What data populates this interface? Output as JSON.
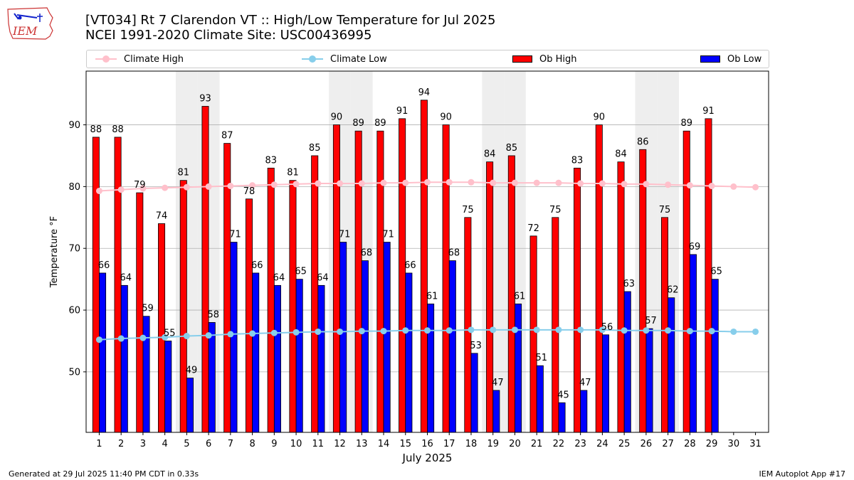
{
  "logo": {
    "text": "IEM"
  },
  "title": {
    "line1": "[VT034] Rt 7 Clarendon  VT :: High/Low Temperature for Jul 2025",
    "line2": "NCEI 1991-2020 Climate Site: USC00436995"
  },
  "legend": {
    "climate_high": "Climate High",
    "climate_low": "Climate Low",
    "ob_high": "Ob High",
    "ob_low": "Ob Low"
  },
  "colors": {
    "ob_high": "#ff0000",
    "ob_low": "#0000ff",
    "climate_high": "#ffc0cb",
    "climate_low": "#87ceeb",
    "weekend_shade": "#eeeeee",
    "grid": "#b0b0b0"
  },
  "footer": {
    "left": "Generated at 29 Jul 2025 11:40 PM CDT in 0.33s",
    "right": "IEM Autoplot App #17"
  },
  "chart_data": {
    "type": "bar",
    "xlabel": "July 2025",
    "ylabel": "Temperature $^\\circ$F",
    "ylim": [
      40.2,
      98.7
    ],
    "yticks": [
      50,
      60,
      70,
      80,
      90
    ],
    "grid": "horizontal",
    "legend_position": "top",
    "days": [
      1,
      2,
      3,
      4,
      5,
      6,
      7,
      8,
      9,
      10,
      11,
      12,
      13,
      14,
      15,
      16,
      17,
      18,
      19,
      20,
      21,
      22,
      23,
      24,
      25,
      26,
      27,
      28,
      29,
      30,
      31
    ],
    "shaded_days": [
      5,
      6,
      12,
      13,
      19,
      20,
      26,
      27
    ],
    "series": [
      {
        "name": "Ob High",
        "kind": "bar",
        "values": [
          88,
          88,
          79,
          74,
          81,
          93,
          87,
          78,
          83,
          81,
          85,
          90,
          89,
          89,
          91,
          94,
          90,
          75,
          84,
          85,
          72,
          75,
          83,
          90,
          84,
          86,
          75,
          89,
          91,
          null,
          null
        ]
      },
      {
        "name": "Ob Low",
        "kind": "bar",
        "values": [
          66,
          64,
          59,
          55,
          49,
          58,
          71,
          66,
          64,
          65,
          64,
          71,
          68,
          71,
          66,
          61,
          68,
          53,
          47,
          61,
          51,
          45,
          47,
          56,
          63,
          57,
          62,
          69,
          65,
          null,
          null
        ]
      },
      {
        "name": "Climate High",
        "kind": "line",
        "values": [
          79.3,
          79.5,
          79.7,
          79.8,
          79.9,
          80.0,
          80.1,
          80.2,
          80.3,
          80.4,
          80.5,
          80.5,
          80.5,
          80.6,
          80.6,
          80.7,
          80.7,
          80.7,
          80.6,
          80.6,
          80.6,
          80.6,
          80.5,
          80.5,
          80.4,
          80.4,
          80.3,
          80.2,
          80.1,
          80.0,
          79.9
        ]
      },
      {
        "name": "Climate Low",
        "kind": "line",
        "values": [
          55.2,
          55.4,
          55.5,
          55.6,
          55.8,
          55.9,
          56.1,
          56.2,
          56.3,
          56.4,
          56.5,
          56.5,
          56.6,
          56.6,
          56.7,
          56.7,
          56.7,
          56.8,
          56.8,
          56.8,
          56.8,
          56.8,
          56.8,
          56.8,
          56.7,
          56.7,
          56.7,
          56.6,
          56.6,
          56.5,
          56.5
        ]
      }
    ]
  }
}
